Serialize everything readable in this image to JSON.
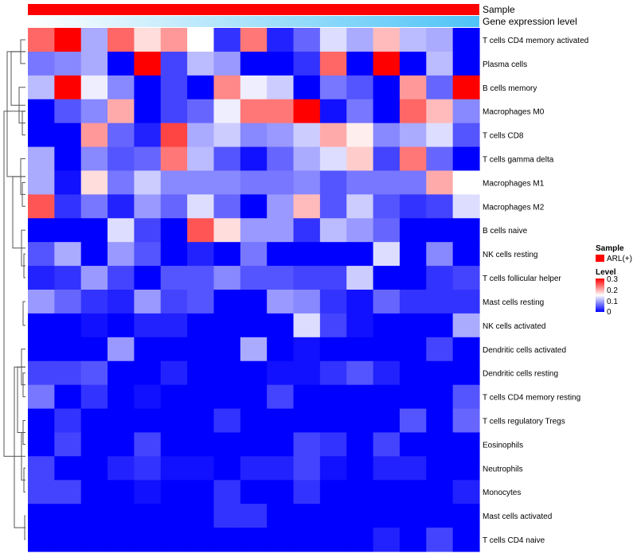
{
  "chart_data": {
    "type": "heatmap",
    "title": "",
    "annotation_tracks": [
      {
        "name": "Sample",
        "kind": "categorical",
        "value": "ARL(+)",
        "color": "#ff0000"
      },
      {
        "name": "Gene expression level",
        "kind": "gradient",
        "color_low": "#ffffff",
        "color_high": "#4fc3f7"
      }
    ],
    "legend": {
      "sample_title": "Sample",
      "sample_items": [
        {
          "label": "ARL(+)",
          "color": "#ff0000"
        }
      ],
      "level_title": "Level",
      "level_ticks": [
        "0.3",
        "0.2",
        "0.1",
        "0"
      ],
      "placement": "right"
    },
    "color_scale": {
      "min": 0,
      "max": 0.3,
      "low": "#0000ff",
      "mid": "#ffffff",
      "high": "#ff0000",
      "mid_value": 0.15
    },
    "n_columns": 17,
    "rows": [
      "T cells CD4 memory activated",
      "Plasma cells",
      "B cells memory",
      "Macrophages M0",
      "T cells CD8",
      "T cells gamma delta",
      "Macrophages M1",
      "Macrophages M2",
      "B cells naive",
      "NK cells resting",
      "T cells follicular helper",
      "Mast cells resting",
      "NK cells activated",
      "Dendritic cells activated",
      "Dendritic cells resting",
      "T cells CD4 memory resting",
      "T cells regulatory  Tregs",
      "Eosinophils",
      "Neutrophils",
      "Monocytes",
      "Mast cells activated",
      "T cells CD4 naive"
    ],
    "values": [
      [
        0.24,
        0.3,
        0.1,
        0.24,
        0.17,
        0.21,
        0.15,
        0.03,
        0.23,
        0.02,
        0.06,
        0.13,
        0.1,
        0.19,
        0.11,
        0.1,
        0.0
      ],
      [
        0.07,
        0.08,
        0.1,
        0.0,
        0.3,
        0.04,
        0.11,
        0.09,
        0.0,
        0.0,
        0.03,
        0.24,
        0.0,
        0.3,
        0.0,
        0.11,
        0.0
      ],
      [
        0.11,
        0.3,
        0.14,
        0.08,
        0.0,
        0.04,
        0.0,
        0.22,
        0.14,
        0.12,
        0.0,
        0.07,
        0.05,
        0.0,
        0.21,
        0.06,
        0.3
      ],
      [
        0.0,
        0.05,
        0.08,
        0.2,
        0.0,
        0.04,
        0.06,
        0.14,
        0.23,
        0.23,
        0.3,
        0.01,
        0.07,
        0.0,
        0.24,
        0.19,
        0.08
      ],
      [
        0.0,
        0.0,
        0.21,
        0.06,
        0.02,
        0.26,
        0.1,
        0.12,
        0.08,
        0.09,
        0.12,
        0.2,
        0.16,
        0.08,
        0.1,
        0.13,
        0.05
      ],
      [
        0.1,
        0.0,
        0.08,
        0.05,
        0.06,
        0.23,
        0.11,
        0.05,
        0.01,
        0.06,
        0.1,
        0.13,
        0.18,
        0.04,
        0.23,
        0.06,
        0.0
      ],
      [
        0.1,
        0.01,
        0.17,
        0.07,
        0.12,
        0.08,
        0.08,
        0.08,
        0.07,
        0.07,
        0.08,
        0.05,
        0.07,
        0.07,
        0.07,
        0.2,
        0.15
      ],
      [
        0.25,
        0.03,
        0.07,
        0.02,
        0.09,
        0.06,
        0.13,
        0.06,
        0.0,
        0.09,
        0.19,
        0.05,
        0.12,
        0.05,
        0.03,
        0.04,
        0.13
      ],
      [
        0.0,
        0.0,
        0.0,
        0.13,
        0.04,
        0.0,
        0.25,
        0.17,
        0.09,
        0.09,
        0.03,
        0.11,
        0.09,
        0.06,
        0.0,
        0.0,
        0.0
      ],
      [
        0.05,
        0.1,
        0.0,
        0.09,
        0.05,
        0.0,
        0.02,
        0.0,
        0.07,
        0.0,
        0.0,
        0.0,
        0.0,
        0.13,
        0.0,
        0.08,
        0.0
      ],
      [
        0.02,
        0.03,
        0.09,
        0.04,
        0.0,
        0.05,
        0.05,
        0.08,
        0.05,
        0.05,
        0.04,
        0.04,
        0.12,
        0.0,
        0.0,
        0.03,
        0.04
      ],
      [
        0.09,
        0.06,
        0.03,
        0.02,
        0.09,
        0.04,
        0.05,
        0.0,
        0.0,
        0.09,
        0.08,
        0.03,
        0.01,
        0.06,
        0.03,
        0.03,
        0.03
      ],
      [
        0.0,
        0.0,
        0.01,
        0.0,
        0.02,
        0.02,
        0.0,
        0.0,
        0.0,
        0.0,
        0.13,
        0.04,
        0.01,
        0.0,
        0.0,
        0.0,
        0.1
      ],
      [
        0.0,
        0.0,
        0.0,
        0.09,
        0.0,
        0.0,
        0.0,
        0.0,
        0.1,
        0.0,
        0.01,
        0.0,
        0.0,
        0.0,
        0.0,
        0.04,
        0.0
      ],
      [
        0.04,
        0.04,
        0.05,
        0.0,
        0.0,
        0.02,
        0.0,
        0.0,
        0.0,
        0.01,
        0.01,
        0.03,
        0.05,
        0.02,
        0.0,
        0.0,
        0.0
      ],
      [
        0.07,
        0.0,
        0.03,
        0.0,
        0.01,
        0.0,
        0.0,
        0.0,
        0.0,
        0.04,
        0.0,
        0.0,
        0.0,
        0.0,
        0.0,
        0.0,
        0.05
      ],
      [
        0.0,
        0.03,
        0.0,
        0.0,
        0.0,
        0.0,
        0.0,
        0.03,
        0.0,
        0.0,
        0.0,
        0.0,
        0.0,
        0.0,
        0.05,
        0.0,
        0.06
      ],
      [
        0.0,
        0.04,
        0.0,
        0.0,
        0.04,
        0.0,
        0.0,
        0.0,
        0.0,
        0.0,
        0.04,
        0.03,
        0.0,
        0.04,
        0.0,
        0.0,
        0.0
      ],
      [
        0.04,
        0.0,
        0.0,
        0.02,
        0.03,
        0.01,
        0.01,
        0.0,
        0.02,
        0.02,
        0.04,
        0.01,
        0.0,
        0.02,
        0.02,
        0.0,
        0.0
      ],
      [
        0.04,
        0.04,
        0.0,
        0.0,
        0.01,
        0.0,
        0.0,
        0.03,
        0.0,
        0.0,
        0.03,
        0.0,
        0.0,
        0.0,
        0.0,
        0.0,
        0.02
      ],
      [
        0.0,
        0.0,
        0.0,
        0.0,
        0.0,
        0.0,
        0.0,
        0.03,
        0.03,
        0.0,
        0.0,
        0.0,
        0.0,
        0.0,
        0.0,
        0.0,
        0.0
      ],
      [
        0.0,
        0.0,
        0.0,
        0.0,
        0.0,
        0.0,
        0.0,
        0.0,
        0.0,
        0.0,
        0.0,
        0.0,
        0.0,
        0.02,
        0.0,
        0.04,
        0.0
      ]
    ]
  }
}
